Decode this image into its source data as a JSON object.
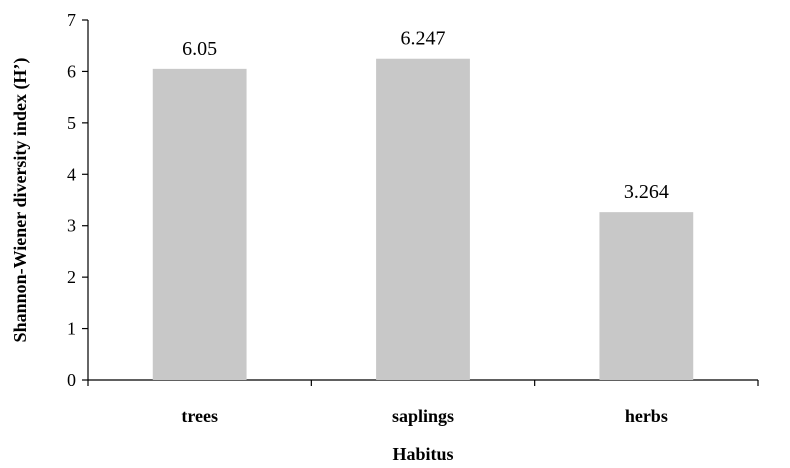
{
  "chart_data": {
    "type": "bar",
    "title": "",
    "xlabel": "Habitus",
    "ylabel": "Shannon-Wiener diversity index (H’)",
    "categories": [
      "trees",
      "saplings",
      "herbs"
    ],
    "values": [
      6.05,
      6.247,
      3.264
    ],
    "value_labels": [
      "6.05",
      "6.247",
      "3.264"
    ],
    "ylim": [
      0,
      7
    ],
    "yticks": [
      0,
      1,
      2,
      3,
      4,
      5,
      6,
      7
    ],
    "bar_color": "#c8c8c8",
    "grid": false,
    "legend": "none"
  }
}
